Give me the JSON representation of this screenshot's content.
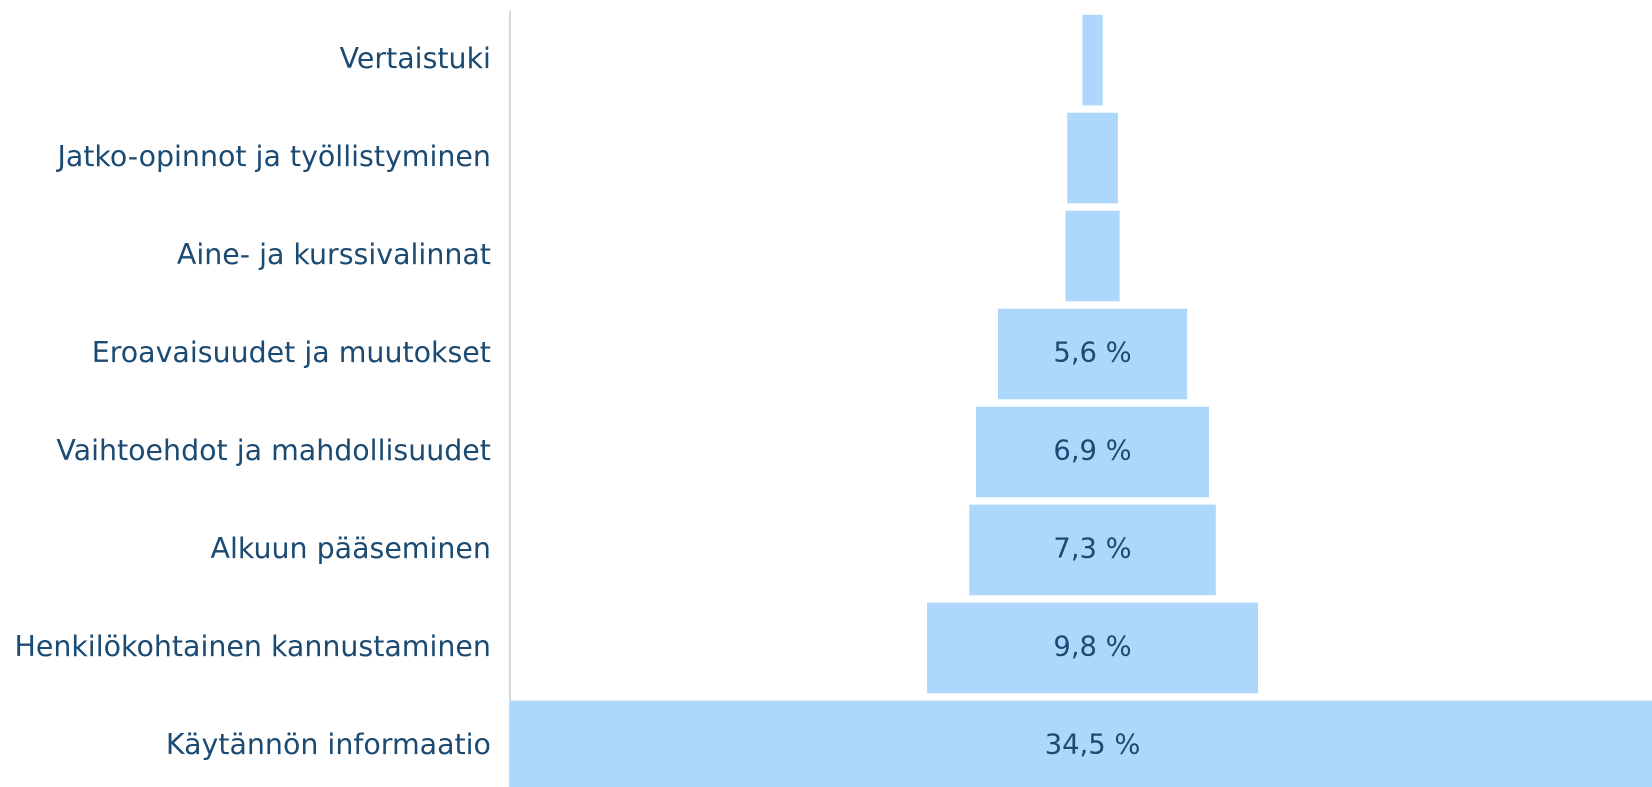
{
  "chart_data": {
    "type": "funnel",
    "categories": [
      "Vertaistuki",
      "Jatko-opinnot ja työllistyminen",
      "Aine- ja kurssivalinnat",
      "Eroavaisuudet ja muutokset",
      "Vaihtoehdot ja mahdollisuudet",
      "Alkuun pääseminen",
      "Henkilökohtainen kannustaminen",
      "Käytännön informaatio"
    ],
    "values": [
      0.6,
      1.5,
      1.6,
      5.6,
      6.9,
      7.3,
      9.8,
      34.5
    ],
    "value_labels": [
      null,
      null,
      null,
      "5,6 %",
      "6,9 %",
      "7,3 %",
      "9,8 %",
      "34,5 %"
    ],
    "color": "#add8fb"
  }
}
